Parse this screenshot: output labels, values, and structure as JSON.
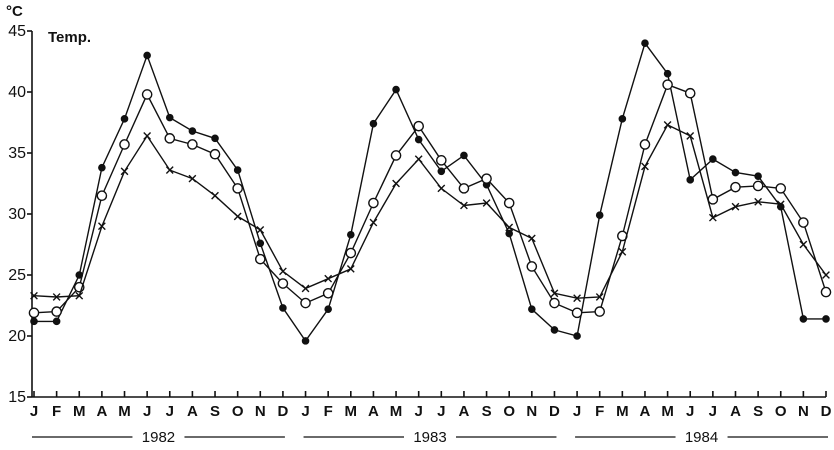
{
  "chart_data": {
    "type": "line",
    "title": "",
    "unit_label": "°C",
    "ylabel": "Temp.",
    "xlabel": "",
    "ylim": [
      15,
      45
    ],
    "yticks": [
      15,
      20,
      25,
      30,
      35,
      40,
      45
    ],
    "grid": false,
    "x": [
      "J",
      "F",
      "M",
      "A",
      "M",
      "J",
      "J",
      "A",
      "S",
      "O",
      "N",
      "D",
      "J",
      "F",
      "M",
      "A",
      "M",
      "J",
      "J",
      "A",
      "S",
      "O",
      "N",
      "D",
      "J",
      "F",
      "M",
      "A",
      "M",
      "J",
      "J",
      "A",
      "S",
      "O",
      "N",
      "D"
    ],
    "years": [
      {
        "label": "1982",
        "start": 0,
        "end": 11
      },
      {
        "label": "1983",
        "start": 12,
        "end": 23
      },
      {
        "label": "1984",
        "start": 24,
        "end": 35
      }
    ],
    "series": [
      {
        "marker": "filled-circle",
        "values": [
          21.2,
          21.2,
          25.0,
          33.8,
          37.8,
          43.0,
          37.9,
          36.8,
          36.2,
          33.6,
          27.6,
          22.3,
          19.6,
          22.2,
          28.3,
          37.4,
          40.2,
          36.1,
          33.5,
          34.8,
          32.4,
          28.4,
          22.2,
          20.5,
          20.0,
          29.9,
          37.8,
          44.0,
          41.5,
          32.8,
          34.5,
          33.4,
          33.1,
          30.6,
          21.4,
          21.4
        ]
      },
      {
        "marker": "open-circle",
        "values": [
          21.9,
          22.0,
          24.0,
          31.5,
          35.7,
          39.8,
          36.2,
          35.7,
          34.9,
          32.1,
          26.3,
          24.3,
          22.7,
          23.5,
          26.8,
          30.9,
          34.8,
          37.2,
          34.4,
          32.1,
          32.9,
          30.9,
          25.7,
          22.7,
          21.9,
          22.0,
          28.2,
          35.7,
          40.6,
          39.9,
          31.2,
          32.2,
          32.3,
          32.1,
          29.3,
          23.6
        ]
      },
      {
        "marker": "cross",
        "values": [
          23.3,
          23.2,
          23.3,
          29.0,
          33.5,
          36.4,
          33.6,
          32.9,
          31.5,
          29.8,
          28.7,
          25.3,
          23.9,
          24.7,
          25.5,
          29.3,
          32.5,
          34.5,
          32.1,
          30.7,
          30.9,
          28.9,
          28.0,
          23.5,
          23.1,
          23.2,
          26.9,
          33.9,
          37.3,
          36.4,
          29.7,
          30.6,
          31.0,
          30.8,
          27.5,
          25.0
        ]
      }
    ]
  }
}
